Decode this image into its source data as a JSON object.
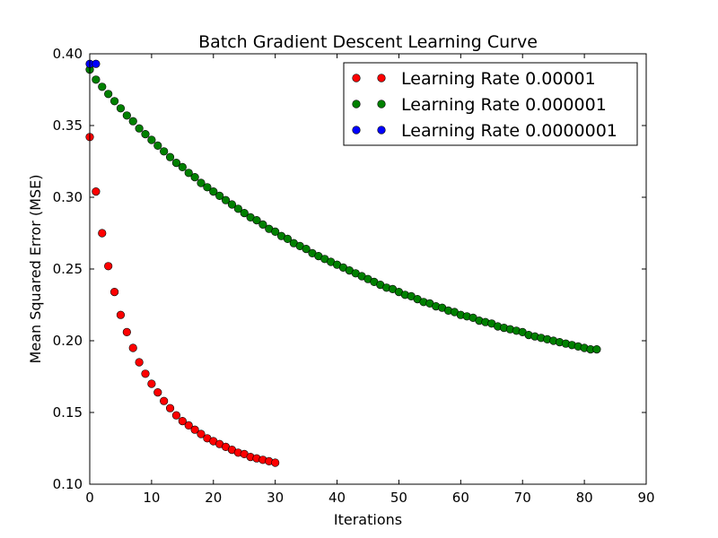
{
  "chart_data": {
    "type": "scatter",
    "title": "Batch Gradient Descent Learning Curve",
    "xlabel": "Iterations",
    "ylabel": "Mean Squared Error (MSE)",
    "xlim": [
      0,
      90
    ],
    "ylim": [
      0.1,
      0.4
    ],
    "xticks": [
      "0",
      "10",
      "20",
      "30",
      "40",
      "50",
      "60",
      "70",
      "80",
      "90"
    ],
    "yticks": [
      "0.10",
      "0.15",
      "0.20",
      "0.25",
      "0.30",
      "0.35",
      "0.40"
    ],
    "grid": false,
    "legend_position": "top-right",
    "series": [
      {
        "name": "Learning Rate 0.00001",
        "color": "#ff0000",
        "x": [
          0,
          1,
          2,
          3,
          4,
          5,
          6,
          7,
          8,
          9,
          10,
          11,
          12,
          13,
          14,
          15,
          16,
          17,
          18,
          19,
          20,
          21,
          22,
          23,
          24,
          25,
          26,
          27,
          28,
          29,
          30
        ],
        "y": [
          0.342,
          0.304,
          0.275,
          0.252,
          0.234,
          0.218,
          0.206,
          0.195,
          0.185,
          0.177,
          0.17,
          0.164,
          0.158,
          0.153,
          0.148,
          0.144,
          0.141,
          0.138,
          0.135,
          0.132,
          0.13,
          0.128,
          0.126,
          0.124,
          0.122,
          0.121,
          0.119,
          0.118,
          0.117,
          0.116,
          0.115
        ]
      },
      {
        "name": "Learning Rate 0.000001",
        "color": "#008000",
        "x": [
          0,
          1,
          2,
          3,
          4,
          5,
          6,
          7,
          8,
          9,
          10,
          11,
          12,
          13,
          14,
          15,
          16,
          17,
          18,
          19,
          20,
          21,
          22,
          23,
          24,
          25,
          26,
          27,
          28,
          29,
          30,
          31,
          32,
          33,
          34,
          35,
          36,
          37,
          38,
          39,
          40,
          41,
          42,
          43,
          44,
          45,
          46,
          47,
          48,
          49,
          50,
          51,
          52,
          53,
          54,
          55,
          56,
          57,
          58,
          59,
          60,
          61,
          62,
          63,
          64,
          65,
          66,
          67,
          68,
          69,
          70,
          71,
          72,
          73,
          74,
          75,
          76,
          77,
          78,
          79,
          80,
          81,
          82
        ],
        "y": [
          0.389,
          0.382,
          0.377,
          0.372,
          0.367,
          0.362,
          0.357,
          0.353,
          0.348,
          0.344,
          0.34,
          0.336,
          0.332,
          0.328,
          0.324,
          0.321,
          0.317,
          0.314,
          0.31,
          0.307,
          0.304,
          0.301,
          0.298,
          0.295,
          0.292,
          0.289,
          0.286,
          0.284,
          0.281,
          0.278,
          0.276,
          0.273,
          0.271,
          0.268,
          0.266,
          0.264,
          0.261,
          0.259,
          0.257,
          0.255,
          0.253,
          0.251,
          0.249,
          0.247,
          0.245,
          0.243,
          0.241,
          0.239,
          0.237,
          0.236,
          0.234,
          0.232,
          0.231,
          0.229,
          0.227,
          0.226,
          0.224,
          0.223,
          0.221,
          0.22,
          0.218,
          0.217,
          0.216,
          0.214,
          0.213,
          0.212,
          0.21,
          0.209,
          0.208,
          0.207,
          0.206,
          0.204,
          0.203,
          0.202,
          0.201,
          0.2,
          0.199,
          0.198,
          0.197,
          0.196,
          0.195,
          0.194,
          0.194
        ]
      },
      {
        "name": "Learning Rate 0.0000001",
        "color": "#0000ff",
        "x": [
          0,
          1
        ],
        "y": [
          0.393,
          0.393
        ]
      }
    ]
  }
}
